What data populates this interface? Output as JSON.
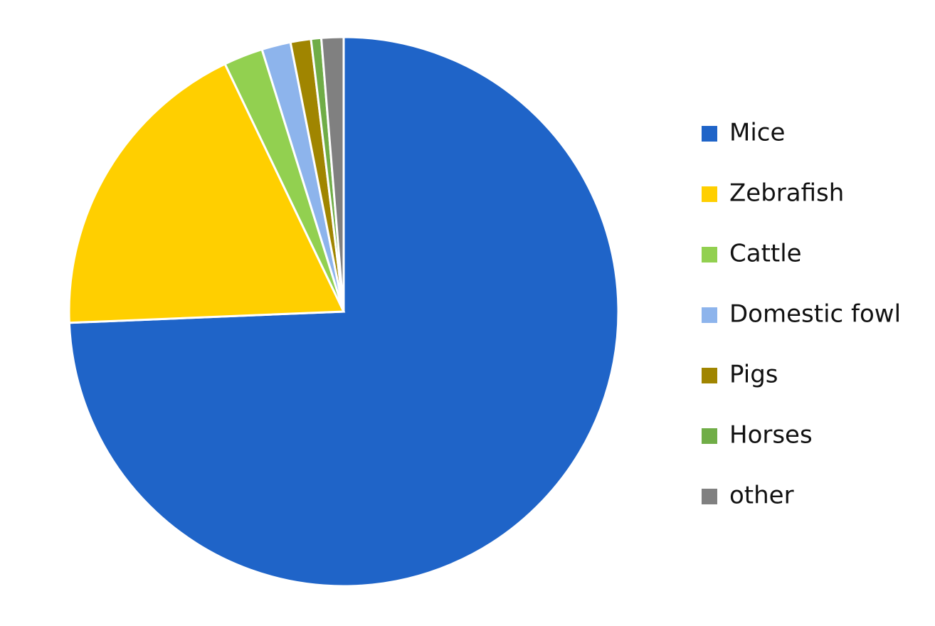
{
  "chart_data": {
    "type": "pie",
    "categories": [
      "Mice",
      "Zebrafish",
      "Cattle",
      "Domestic fowl",
      "Pigs",
      "Horses",
      "other"
    ],
    "values": [
      74.2,
      18.5,
      2.3,
      1.7,
      1.2,
      0.6,
      1.3
    ],
    "colors": [
      "#1f64c8",
      "#ffcf00",
      "#92d050",
      "#8db4ec",
      "#a08500",
      "#70ad47",
      "#808080"
    ],
    "legend": "right"
  }
}
